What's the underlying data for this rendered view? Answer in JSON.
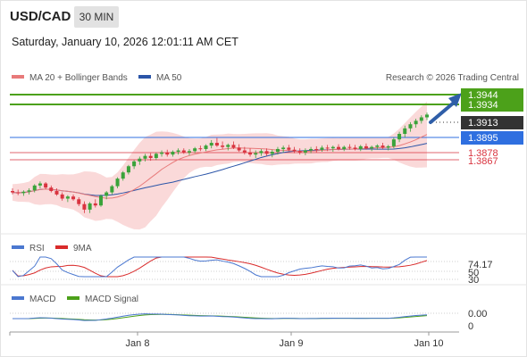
{
  "header": {
    "symbol": "USD/CAD",
    "interval": "30 MIN",
    "datetime": "Saturday, January 10, 2026 12:01:11 AM CET",
    "copyright": "Research © 2026 Trading Central"
  },
  "legend": {
    "ma20_label": "MA 20 + Bollinger Bands",
    "ma50_label": "MA 50",
    "rsi_label": "RSI",
    "rsi_ma_label": "9MA",
    "macd_label": "MACD",
    "macd_signal_label": "MACD Signal"
  },
  "colors": {
    "candle_up": "#3aa33a",
    "candle_down": "#d9333f",
    "ma20": "#e87a7a",
    "bollinger_fill": "#f9d2d2",
    "ma50": "#2b55a8",
    "target": "#4ca11a",
    "current": "#333333",
    "pivot": "#2f6fe0",
    "support": "#d9333f",
    "arrow": "#2f5ea8",
    "rsi": "#4b78d0",
    "rsi_ma": "#d92b2b",
    "macd": "#4b78d0",
    "macd_signal": "#4ca11a"
  },
  "levels": {
    "target_1": "1.3944",
    "target_2": "1.3934",
    "current": "1.3913",
    "pivot": "1.3895",
    "support_1": "1.3878",
    "support_2": "1.3867"
  },
  "x_axis": {
    "ticks": [
      "Jan 8",
      "Jan 9",
      "Jan 10"
    ]
  },
  "rsi_axis": {
    "ticks": [
      "70",
      "50",
      "30"
    ],
    "current": "74.17"
  },
  "macd_axis": {
    "ticks": [
      "0"
    ],
    "current": "0.00"
  },
  "chart_data": {
    "type": "candlestick",
    "price_range": [
      1.3745,
      1.3955
    ],
    "candles_ohlc": [
      [
        1.3802,
        1.3806,
        1.3797,
        1.38
      ],
      [
        1.38,
        1.3804,
        1.3796,
        1.3799
      ],
      [
        1.3799,
        1.3803,
        1.3795,
        1.3801
      ],
      [
        1.3801,
        1.3806,
        1.3797,
        1.3803
      ],
      [
        1.3803,
        1.3812,
        1.38,
        1.381
      ],
      [
        1.381,
        1.3816,
        1.3806,
        1.3813
      ],
      [
        1.3813,
        1.3815,
        1.3805,
        1.3807
      ],
      [
        1.3807,
        1.381,
        1.38,
        1.3802
      ],
      [
        1.3802,
        1.3806,
        1.3795,
        1.3797
      ],
      [
        1.3797,
        1.38,
        1.3788,
        1.3791
      ],
      [
        1.3791,
        1.3796,
        1.3786,
        1.3794
      ],
      [
        1.3794,
        1.3797,
        1.3788,
        1.379
      ],
      [
        1.379,
        1.3793,
        1.378,
        1.3783
      ],
      [
        1.3783,
        1.3787,
        1.377,
        1.3775
      ],
      [
        1.3775,
        1.3786,
        1.377,
        1.3784
      ],
      [
        1.3784,
        1.379,
        1.3778,
        1.3781
      ],
      [
        1.3781,
        1.3797,
        1.3779,
        1.3795
      ],
      [
        1.3795,
        1.3802,
        1.379,
        1.38
      ],
      [
        1.38,
        1.3811,
        1.3797,
        1.3809
      ],
      [
        1.3809,
        1.3822,
        1.3806,
        1.382
      ],
      [
        1.382,
        1.3831,
        1.3817,
        1.3829
      ],
      [
        1.3829,
        1.384,
        1.3826,
        1.3838
      ],
      [
        1.3838,
        1.3847,
        1.3834,
        1.3845
      ],
      [
        1.3845,
        1.3852,
        1.384,
        1.3849
      ],
      [
        1.3849,
        1.3856,
        1.3845,
        1.3853
      ],
      [
        1.3853,
        1.3857,
        1.3846,
        1.385
      ],
      [
        1.385,
        1.3858,
        1.3847,
        1.3856
      ],
      [
        1.3856,
        1.3861,
        1.3852,
        1.3858
      ],
      [
        1.3858,
        1.3862,
        1.3852,
        1.3855
      ],
      [
        1.3855,
        1.3861,
        1.3852,
        1.3859
      ],
      [
        1.3859,
        1.3864,
        1.3855,
        1.3861
      ],
      [
        1.3861,
        1.3864,
        1.3856,
        1.3858
      ],
      [
        1.3858,
        1.3863,
        1.3854,
        1.386
      ],
      [
        1.386,
        1.3866,
        1.3857,
        1.3864
      ],
      [
        1.3864,
        1.3868,
        1.386,
        1.3863
      ],
      [
        1.3863,
        1.387,
        1.386,
        1.3868
      ],
      [
        1.3868,
        1.3876,
        1.3864,
        1.3872
      ],
      [
        1.3872,
        1.3879,
        1.3866,
        1.3868
      ],
      [
        1.3868,
        1.3874,
        1.3863,
        1.3866
      ],
      [
        1.3866,
        1.3871,
        1.3861,
        1.3869
      ],
      [
        1.3869,
        1.3874,
        1.3863,
        1.3865
      ],
      [
        1.3865,
        1.387,
        1.3859,
        1.3861
      ],
      [
        1.3861,
        1.3866,
        1.3855,
        1.3858
      ],
      [
        1.3858,
        1.3864,
        1.3852,
        1.3855
      ],
      [
        1.3855,
        1.3861,
        1.385,
        1.3857
      ],
      [
        1.3857,
        1.3863,
        1.3853,
        1.386
      ],
      [
        1.386,
        1.3864,
        1.3853,
        1.3856
      ],
      [
        1.3856,
        1.3862,
        1.3851,
        1.3859
      ],
      [
        1.3859,
        1.3866,
        1.3855,
        1.3863
      ],
      [
        1.3863,
        1.3868,
        1.3858,
        1.3865
      ],
      [
        1.3865,
        1.3869,
        1.386,
        1.3862
      ],
      [
        1.3862,
        1.3866,
        1.3857,
        1.386
      ],
      [
        1.386,
        1.3864,
        1.3855,
        1.3858
      ],
      [
        1.3858,
        1.3864,
        1.3854,
        1.3861
      ],
      [
        1.3861,
        1.3866,
        1.3857,
        1.3863
      ],
      [
        1.3863,
        1.3867,
        1.3858,
        1.3862
      ],
      [
        1.3862,
        1.3868,
        1.3859,
        1.3865
      ],
      [
        1.3865,
        1.3869,
        1.386,
        1.3864
      ],
      [
        1.3864,
        1.3868,
        1.3859,
        1.3866
      ],
      [
        1.3866,
        1.387,
        1.3861,
        1.3863
      ],
      [
        1.3863,
        1.3868,
        1.386,
        1.3866
      ],
      [
        1.3866,
        1.387,
        1.3862,
        1.3865
      ],
      [
        1.3865,
        1.3869,
        1.3861,
        1.3863
      ],
      [
        1.3863,
        1.3869,
        1.386,
        1.3867
      ],
      [
        1.3867,
        1.3871,
        1.3862,
        1.3864
      ],
      [
        1.3864,
        1.3868,
        1.386,
        1.3866
      ],
      [
        1.3866,
        1.387,
        1.3862,
        1.3868
      ],
      [
        1.3868,
        1.3872,
        1.3863,
        1.3865
      ],
      [
        1.3865,
        1.3869,
        1.3861,
        1.3867
      ],
      [
        1.3867,
        1.388,
        1.3864,
        1.3877
      ],
      [
        1.3877,
        1.3888,
        1.3873,
        1.3885
      ],
      [
        1.3885,
        1.3897,
        1.388,
        1.3893
      ],
      [
        1.3893,
        1.3902,
        1.3888,
        1.3899
      ],
      [
        1.3899,
        1.3907,
        1.3894,
        1.3904
      ],
      [
        1.3904,
        1.3912,
        1.39,
        1.3909
      ],
      [
        1.3909,
        1.3916,
        1.3905,
        1.3913
      ]
    ]
  }
}
